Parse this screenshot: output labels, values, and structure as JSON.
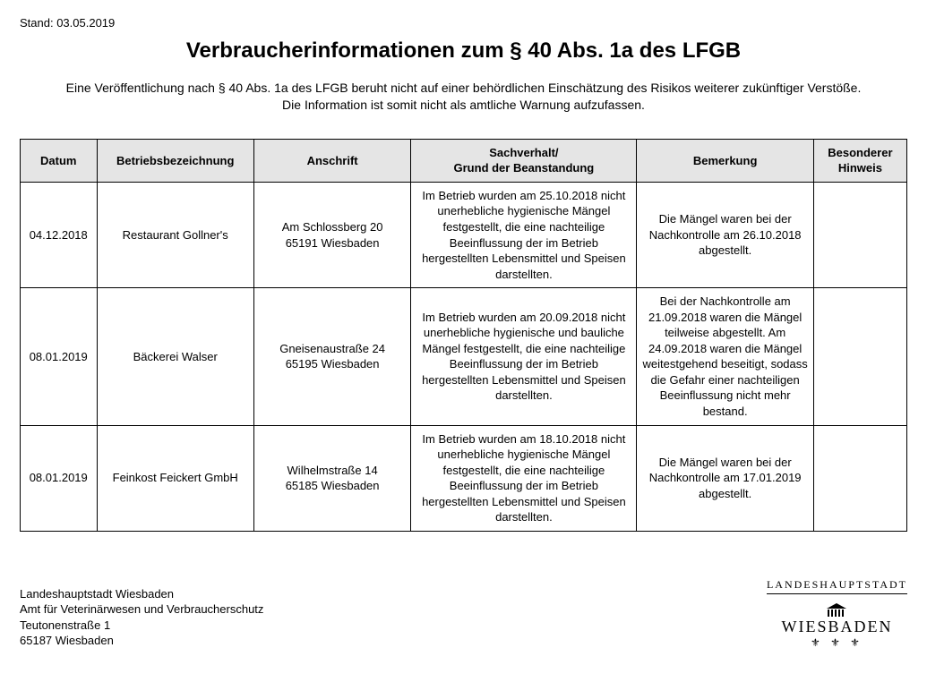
{
  "stand_label": "Stand: 03.05.2019",
  "title": "Verbraucherinformationen zum § 40 Abs. 1a des LFGB",
  "subtitle_line1": "Eine Veröffentlichung nach § 40 Abs. 1a des LFGB beruht nicht auf einer behördlichen Einschätzung des Risikos weiterer zukünftiger Verstöße.",
  "subtitle_line2": "Die Information ist somit nicht als amtliche Warnung aufzufassen.",
  "table": {
    "columns": [
      "Datum",
      "Betriebsbezeichnung",
      "Anschrift",
      "Sachverhalt/\nGrund der Beanstandung",
      "Bemerkung",
      "Besonderer Hinweis"
    ],
    "header_bg": "#e5e5e5",
    "border_color": "#000000",
    "font_size": 13,
    "rows": [
      {
        "datum": "04.12.2018",
        "betrieb": "Restaurant Gollner's",
        "anschrift": "Am Schlossberg 20\n65191 Wiesbaden",
        "sachverhalt": "Im Betrieb wurden am 25.10.2018 nicht unerhebliche hygienische Mängel festgestellt, die eine nachteilige Beeinflussung der im Betrieb hergestellten Lebensmittel und Speisen darstellten.",
        "bemerkung": "Die Mängel waren bei der Nachkontrolle am 26.10.2018 abgestellt.",
        "hinweis": ""
      },
      {
        "datum": "08.01.2019",
        "betrieb": "Bäckerei Walser",
        "anschrift": "Gneisenaustraße 24\n65195 Wiesbaden",
        "sachverhalt": "Im Betrieb wurden am 20.09.2018 nicht unerhebliche hygienische und bauliche Mängel festgestellt, die eine nachteilige Beeinflussung der im Betrieb hergestellten Lebensmittel und Speisen darstellten.",
        "bemerkung": "Bei der Nachkontrolle am 21.09.2018 waren die Mängel teilweise abgestellt. Am 24.09.2018 waren die Mängel weitestgehend beseitigt, sodass die Gefahr einer nachteiligen Beeinflussung nicht mehr bestand.",
        "hinweis": ""
      },
      {
        "datum": "08.01.2019",
        "betrieb": "Feinkost Feickert GmbH",
        "anschrift": "Wilhelmstraße 14\n65185 Wiesbaden",
        "sachverhalt": "Im Betrieb wurden am 18.10.2018 nicht unerhebliche hygienische Mängel festgestellt, die eine nachteilige Beeinflussung der im Betrieb hergestellten Lebensmittel und Speisen darstellten.",
        "bemerkung": "Die Mängel waren bei der Nachkontrolle am 17.01.2019 abgestellt.",
        "hinweis": ""
      }
    ]
  },
  "footer": {
    "address_lines": [
      "Landeshauptstadt Wiesbaden",
      "Amt für Veterinärwesen und Verbraucherschutz",
      "Teutonenstraße 1",
      "65187 Wiesbaden"
    ],
    "landes_label": "LANDESHAUPTSTADT",
    "logo_city": "WIESBADEN",
    "logo_roof": "▲",
    "logo_columns": "||||",
    "logo_lilies": "⚜ ⚜ ⚜"
  },
  "colors": {
    "background": "#ffffff",
    "text": "#000000"
  }
}
